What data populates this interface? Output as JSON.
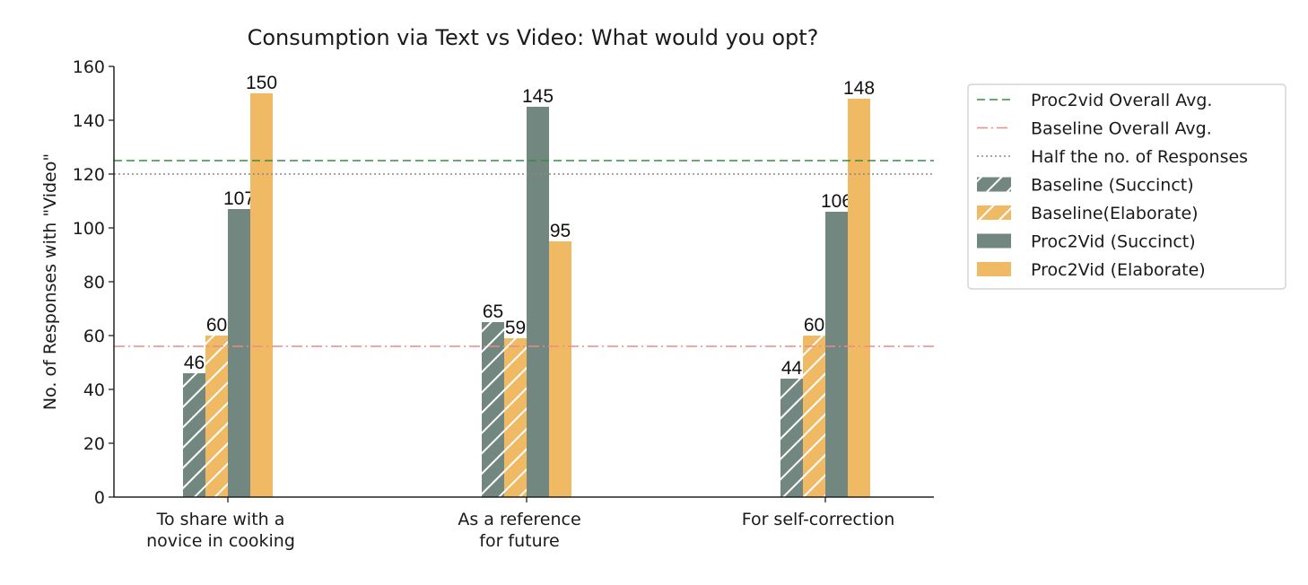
{
  "chart_data": {
    "type": "bar",
    "title": "Consumption via Text vs  Video: What would you opt?",
    "xlabel": "",
    "ylabel": "No. of Responses with \"Video\"",
    "ylim": [
      0,
      160
    ],
    "yticks": [
      "0",
      "20",
      "40",
      "60",
      "80",
      "100",
      "120",
      "140",
      "160"
    ],
    "categories": [
      [
        "To share with a",
        "novice in cooking"
      ],
      [
        "As a reference",
        "for future"
      ],
      [
        "For self-correction"
      ]
    ],
    "series": [
      {
        "name": "Baseline (Succinct)",
        "values": [
          46,
          65,
          44
        ],
        "color": "#728780",
        "hatch": true
      },
      {
        "name": "Baseline(Elaborate)",
        "values": [
          60,
          59,
          60
        ],
        "color": "#f0b964",
        "hatch": true
      },
      {
        "name": "Proc2Vid (Succinct)",
        "values": [
          107,
          145,
          106
        ],
        "color": "#728780",
        "hatch": false
      },
      {
        "name": "Proc2Vid (Elaborate)",
        "values": [
          150,
          95,
          148
        ],
        "color": "#f0b964",
        "hatch": false
      }
    ],
    "reference_lines": [
      {
        "name": "Proc2vid Overall Avg.",
        "value": 125,
        "color": "#3a8a45",
        "style": "dashed"
      },
      {
        "name": "Baseline Overall Avg.",
        "value": 56,
        "color": "#ea8c87",
        "style": "dashdot"
      },
      {
        "name": "Half the no. of Responses",
        "value": 120,
        "color": "#888888",
        "style": "dotted"
      }
    ],
    "legend_position": "outside-right",
    "grid": false
  }
}
